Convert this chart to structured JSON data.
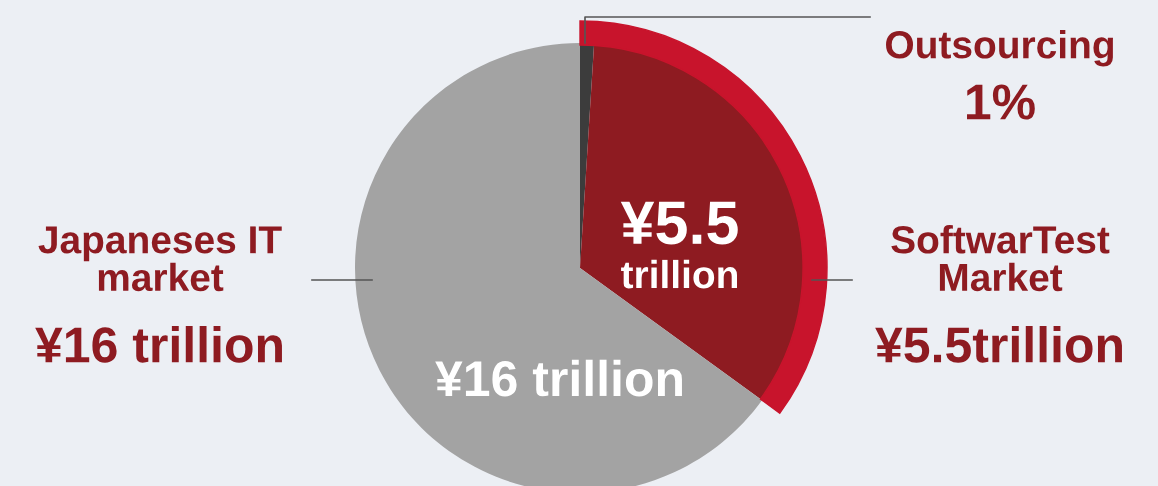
{
  "chart_data": {
    "type": "pie",
    "categories": [
      "Outsourcing",
      "SoftwarTest\nMarket",
      "Japaneses IT\nmarket"
    ],
    "values": [
      1,
      34,
      65
    ],
    "colors": [
      "#3c3c3c",
      "#8e1b21",
      "#a3a3a3"
    ],
    "annotations": [
      "1%",
      "¥5.5trillion",
      "¥16 trillion",
      "¥5.5\ntrillion",
      "¥16 trillion"
    ]
  }
}
